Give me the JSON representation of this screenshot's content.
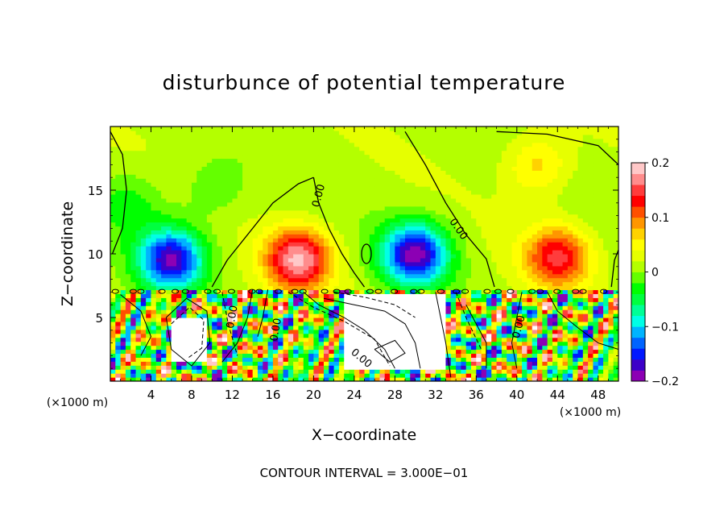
{
  "chart_data": {
    "type": "heatmap",
    "title": "disturbunce of potential temperature",
    "xlabel": "X−coordinate",
    "ylabel": "Z−coordinate",
    "x_unit_left": "(×1000 m)",
    "x_unit_right": "(×1000 m)",
    "xlim": [
      0,
      50
    ],
    "ylim": [
      0,
      20
    ],
    "x_ticks": [
      4,
      8,
      12,
      16,
      20,
      24,
      28,
      32,
      36,
      40,
      44,
      48
    ],
    "x_tick_labels": [
      "4",
      "8",
      "12",
      "16",
      "20",
      "24",
      "28",
      "32",
      "36",
      "40",
      "44",
      "48"
    ],
    "y_ticks": [
      5,
      10,
      15
    ],
    "y_tick_labels": [
      "5",
      "10",
      "15"
    ],
    "colorbar": {
      "min": -0.2,
      "max": 0.2,
      "tick_values": [
        0.2,
        0.1,
        0,
        -0.1,
        -0.2
      ],
      "tick_labels": [
        "0.2",
        "0.1",
        "0",
        "−0.1",
        "−0.2"
      ],
      "colors": [
        "#8c00b4",
        "#3c00c8",
        "#0018ff",
        "#0064ff",
        "#00b4ff",
        "#00ffe6",
        "#00ff96",
        "#00ff40",
        "#00ff00",
        "#64ff00",
        "#b4ff00",
        "#e6ff00",
        "#ffff00",
        "#ffd200",
        "#ff9600",
        "#ff5000",
        "#ff0000",
        "#ff3c3c",
        "#ff8c8c",
        "#ffc8c8"
      ]
    },
    "contour_labels": [
      "0.00",
      "0.00",
      "0.00",
      "0.00",
      "0.00",
      "0.00"
    ],
    "contour_interval_text": "CONTOUR INTERVAL = 3.000E−01",
    "features": {
      "mixed_layer_top_z": 7.3,
      "upper_blobs": [
        {
          "x": 6,
          "z": 9.6,
          "amp": -0.19
        },
        {
          "x": 18.5,
          "z": 9.6,
          "amp": 0.17
        },
        {
          "x": 30,
          "z": 10,
          "amp": -0.2
        },
        {
          "x": 44,
          "z": 9.8,
          "amp": 0.13
        },
        {
          "x": 2,
          "z": 14,
          "amp": -0.04
        },
        {
          "x": 10,
          "z": 15,
          "amp": -0.03
        },
        {
          "x": 42,
          "z": 17,
          "amp": 0.06
        }
      ]
    }
  }
}
